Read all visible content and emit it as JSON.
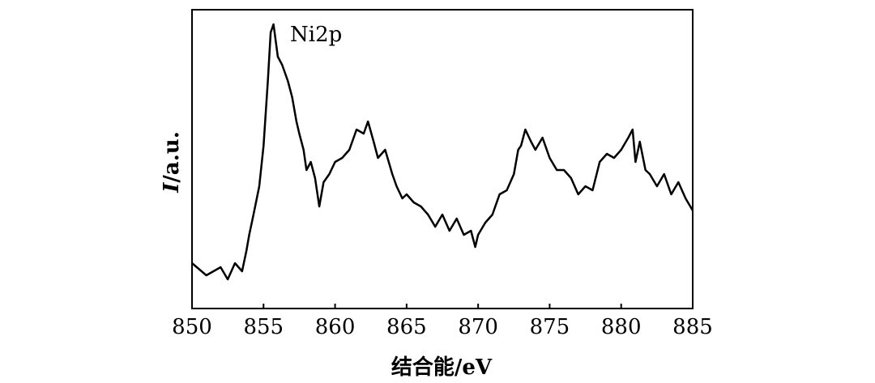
{
  "chart_data": {
    "type": "line",
    "annotation": "Ni2p",
    "xlabel": "结合能/eV",
    "ylabel_italic": "I",
    "ylabel": "/a.u.",
    "xlim": [
      850,
      885
    ],
    "xticks": [
      850,
      855,
      860,
      865,
      870,
      875,
      880,
      885
    ],
    "ylim": [
      0,
      369
    ],
    "series": [
      {
        "color": "#000000",
        "x": [
          850,
          851,
          852,
          852.5,
          853,
          853.5,
          853.8,
          854,
          854.3,
          854.7,
          855,
          855.3,
          855.5,
          855.7,
          856,
          856.3,
          856.7,
          857,
          857.3,
          857.5,
          857.8,
          858,
          858.3,
          858.6,
          858.9,
          859.2,
          859.6,
          860,
          860.5,
          861,
          861.5,
          862,
          862.3,
          862.7,
          863,
          863.5,
          864,
          864.3,
          864.7,
          865,
          865.5,
          866,
          866.5,
          867,
          867.5,
          868,
          868.5,
          869,
          869.5,
          869.8,
          870,
          870.5,
          871,
          871.5,
          872,
          872.5,
          872.8,
          873,
          873.3,
          873.7,
          874,
          874.5,
          875,
          875.5,
          876,
          876.5,
          877,
          877.5,
          878,
          878.5,
          879,
          879.5,
          880,
          880.5,
          880.8,
          881,
          881.3,
          881.7,
          882,
          882.5,
          883,
          883.5,
          884,
          884.5,
          885
        ],
        "values": [
          56,
          41,
          51,
          36,
          56,
          46,
          71,
          91,
          116,
          151,
          201,
          281,
          341,
          351,
          311,
          301,
          281,
          261,
          231,
          216,
          196,
          171,
          181,
          161,
          126,
          156,
          166,
          181,
          186,
          196,
          221,
          216,
          231,
          206,
          186,
          196,
          166,
          151,
          136,
          141,
          131,
          126,
          116,
          101,
          116,
          96,
          111,
          91,
          96,
          76,
          91,
          106,
          116,
          141,
          146,
          166,
          196,
          201,
          221,
          206,
          196,
          211,
          186,
          171,
          171,
          161,
          141,
          151,
          146,
          181,
          191,
          186,
          196,
          211,
          221,
          181,
          206,
          171,
          166,
          151,
          166,
          141,
          156,
          136,
          121
        ]
      }
    ]
  }
}
